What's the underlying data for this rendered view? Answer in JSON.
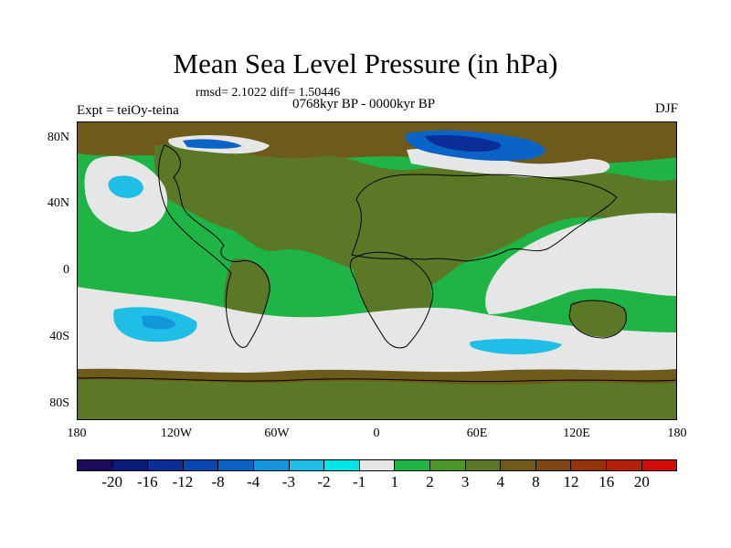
{
  "title": "Mean Sea Level Pressure (in hPa)",
  "stats": "rmsd= 2.1022 diff= 1.50446",
  "period": "0768kyr BP - 0000kyr BP",
  "expt": "Expt = teiOy-teina",
  "season": "DJF",
  "lat_labels": [
    "80N",
    "40N",
    "0",
    "40S",
    "80S"
  ],
  "lon_labels": [
    "180",
    "120W",
    "60W",
    "0",
    "60E",
    "120E",
    "180"
  ],
  "colorbar": {
    "colors": [
      "#1e0a5a",
      "#0a1c7a",
      "#0a2e96",
      "#0a46b4",
      "#0a64c8",
      "#1496dc",
      "#1ebee6",
      "#00e6e6",
      "#e6e6e6",
      "#1eb446",
      "#4a9628",
      "#5a7826",
      "#6e5a1a",
      "#7e4614",
      "#96320a",
      "#b4200a",
      "#d20a0a"
    ],
    "labels": [
      "-20",
      "-16",
      "-12",
      "-8",
      "-4",
      "-3",
      "-2",
      "-1",
      "1",
      "2",
      "3",
      "4",
      "8",
      "12",
      "16",
      "20"
    ]
  }
}
